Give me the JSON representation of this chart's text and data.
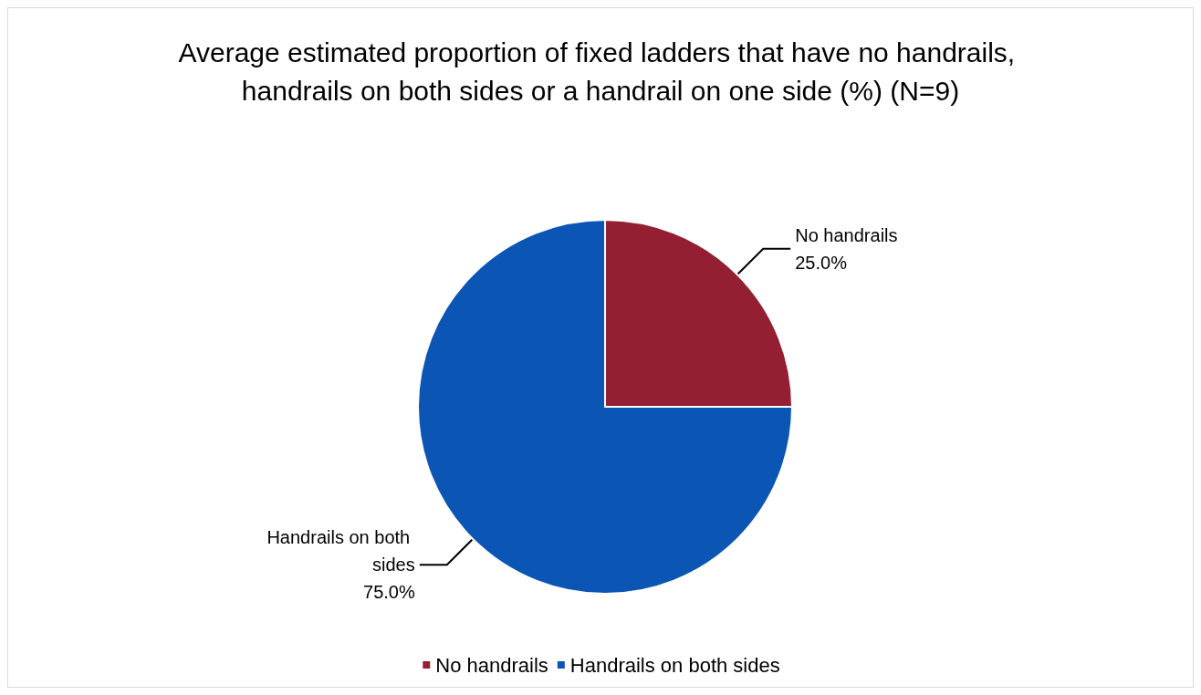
{
  "chart_data": {
    "type": "pie",
    "title": "Average estimated proportion of fixed ladders that have no handrails, handrails on both sides or a handrail on one side (%) (N=9)",
    "categories": [
      "No handrails",
      "Handrails on both sides"
    ],
    "values": [
      25.0,
      75.0
    ],
    "colors": [
      "#941e32",
      "#0b55b5"
    ],
    "value_labels": [
      "25.0%",
      "75.0%"
    ],
    "legend": "bottom"
  }
}
